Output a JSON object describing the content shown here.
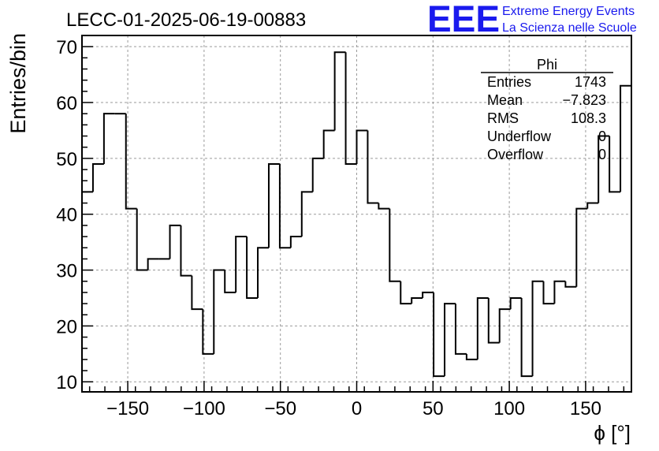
{
  "chart_data": {
    "type": "histogram",
    "title": "LECC-01-2025-06-19-00883",
    "xlabel": "ϕ [°]",
    "ylabel": "Entries/bin",
    "xlim": [
      -180,
      180
    ],
    "ylim": [
      8.2,
      72
    ],
    "grid": true,
    "bin_width": 7.2,
    "x_ticks": [
      -150,
      -100,
      -50,
      0,
      50,
      100,
      150
    ],
    "x_tick_labels": [
      "−150",
      "−100",
      "−50",
      "0",
      "50",
      "100",
      "150"
    ],
    "y_ticks": [
      10,
      20,
      30,
      40,
      50,
      60,
      70
    ],
    "y_tick_labels": [
      "10",
      "20",
      "30",
      "40",
      "50",
      "60",
      "70"
    ],
    "values": [
      44,
      49,
      58,
      58,
      41,
      30,
      32,
      32,
      38,
      29,
      23,
      15,
      30,
      26,
      36,
      25,
      34,
      49,
      34,
      36,
      44,
      50,
      55,
      69,
      49,
      55,
      42,
      41,
      28,
      24,
      25,
      26,
      11,
      24,
      15,
      14,
      25,
      17,
      23,
      25,
      11,
      28,
      24,
      28,
      27,
      41,
      42,
      54,
      44,
      63
    ],
    "stats_box": {
      "title": "Phi",
      "rows": [
        {
          "label": "Entries",
          "value": "1743"
        },
        {
          "label": "Mean",
          "value": "−7.823"
        },
        {
          "label": "RMS",
          "value": "108.3"
        },
        {
          "label": "Underflow",
          "value": "0"
        },
        {
          "label": "Overflow",
          "value": "0"
        }
      ]
    },
    "logo": {
      "mark": "EEE",
      "line1": "Extreme Energy Events",
      "line2": "La Scienza nelle Scuole",
      "color": "#1a1aee"
    },
    "colors": {
      "line": "#000000",
      "grid": "#9a9a9a",
      "background": "#ffffff"
    }
  }
}
